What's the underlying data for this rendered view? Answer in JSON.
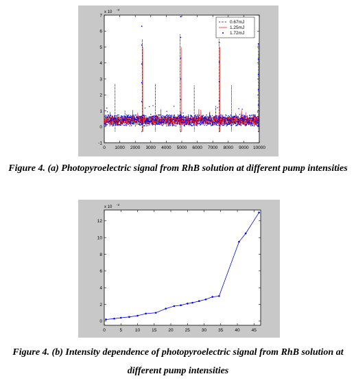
{
  "captions": {
    "a": "Figure 4. (a) Photopyroelectric signal from RhB solution at different pump intensities",
    "b": "Figure 4. (b) Intensity dependence of photopyroelectric signal from RhB solution at different pump intensities"
  },
  "chart_data": [
    {
      "type": "line",
      "title": "",
      "xlabel": "",
      "ylabel": "",
      "xlim": [
        0,
        10000
      ],
      "ylim": [
        -0.001,
        0.007
      ],
      "y_exponent_label": "x 10",
      "y_exponent": "-3",
      "x_ticks": [
        0,
        1000,
        2000,
        3000,
        4000,
        5000,
        6000,
        7000,
        8000,
        9000,
        10000
      ],
      "y_ticks": [
        -1,
        0,
        1,
        2,
        3,
        4,
        5,
        6,
        7
      ],
      "grid": false,
      "legend_position": "top-right",
      "series": [
        {
          "name": "0.67mJ",
          "color": "#000000",
          "style": "dash-dot",
          "baseline": 0.0004,
          "noise": 0.0003,
          "spikes": [
            {
              "x": 700,
              "y": 0.0027
            },
            {
              "x": 2450,
              "y": 0.0055
            },
            {
              "x": 3300,
              "y": 0.0027
            },
            {
              "x": 4900,
              "y": 0.0058
            },
            {
              "x": 5800,
              "y": 0.0026
            },
            {
              "x": 7400,
              "y": 0.0055
            },
            {
              "x": 8200,
              "y": 0.0026
            },
            {
              "x": 9950,
              "y": 0.0052
            }
          ]
        },
        {
          "name": "1.25mJ",
          "color": "#ff0000",
          "style": "solid",
          "baseline": 0.0004,
          "noise": 0.0003,
          "spikes": [
            {
              "x": 2480,
              "y": 0.005
            },
            {
              "x": 4960,
              "y": 0.005
            },
            {
              "x": 7450,
              "y": 0.005
            },
            {
              "x": 9980,
              "y": 0.0046
            }
          ]
        },
        {
          "name": "1.72mJ",
          "color": "#0000ff",
          "style": "dots",
          "baseline": 0.0004,
          "noise": 0.00035,
          "spikes": [
            {
              "x": 2420,
              "y": 0.0063
            },
            {
              "x": 4930,
              "y": 0.0069
            },
            {
              "x": 7420,
              "y": 0.0065
            },
            {
              "x": 9940,
              "y": 0.0052
            }
          ]
        }
      ]
    },
    {
      "type": "line",
      "title": "",
      "xlabel": "",
      "ylabel": "",
      "xlim": [
        0,
        47
      ],
      "ylim": [
        -0.0005,
        0.0133
      ],
      "y_exponent_label": "x 10",
      "y_exponent": "-3",
      "x_ticks": [
        0,
        5,
        10,
        15,
        20,
        25,
        30,
        35,
        40,
        45
      ],
      "y_ticks": [
        0,
        2,
        4,
        6,
        8,
        10,
        12
      ],
      "grid": false,
      "series": [
        {
          "color": "#0000ff",
          "marker": "dot",
          "x": [
            0.5,
            3,
            5,
            7.5,
            10,
            12.5,
            15.5,
            18.5,
            21,
            23,
            25,
            26.5,
            28.5,
            30.5,
            32.5,
            34.5,
            40.5,
            42.5,
            46.5
          ],
          "y": [
            0.0002,
            0.0003,
            0.0004,
            0.0005,
            0.00065,
            0.0009,
            0.001,
            0.0015,
            0.0018,
            0.0019,
            0.0021,
            0.0022,
            0.0024,
            0.0026,
            0.0029,
            0.003,
            0.0095,
            0.0105,
            0.013
          ]
        }
      ]
    }
  ]
}
